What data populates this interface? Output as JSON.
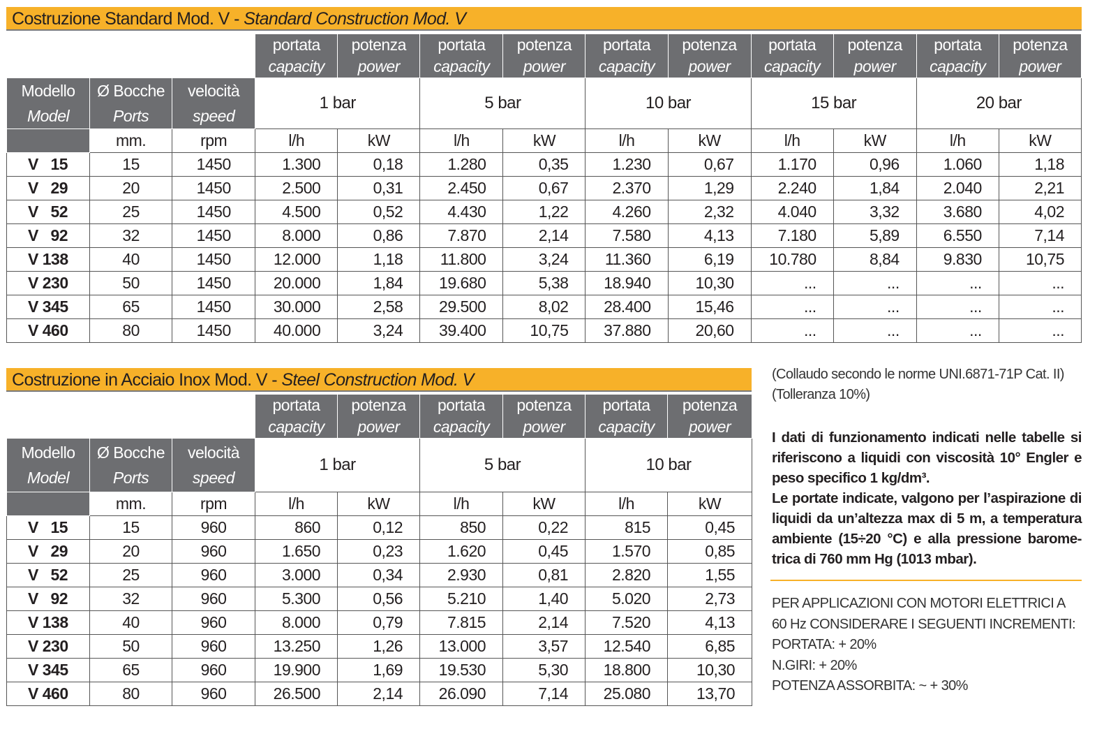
{
  "table1": {
    "title_it": "Costruzione Standard Mod. V - ",
    "title_en": "Standard Construction Mod. V",
    "col_pairs": [
      {
        "cap_it": "portata",
        "cap_en": "capacity",
        "pow_it": "potenza",
        "pow_en": "power",
        "bar": "1 bar",
        "u1": "l/h",
        "u2": "kW"
      },
      {
        "cap_it": "portata",
        "cap_en": "capacity",
        "pow_it": "potenza",
        "pow_en": "power",
        "bar": "5 bar",
        "u1": "l/h",
        "u2": "kW"
      },
      {
        "cap_it": "portata",
        "cap_en": "capacity",
        "pow_it": "potenza",
        "pow_en": "power",
        "bar": "10 bar",
        "u1": "l/h",
        "u2": "kW"
      },
      {
        "cap_it": "portata",
        "cap_en": "capacity",
        "pow_it": "potenza",
        "pow_en": "power",
        "bar": "15 bar",
        "u1": "l/h",
        "u2": "kW"
      },
      {
        "cap_it": "portata",
        "cap_en": "capacity",
        "pow_it": "potenza",
        "pow_en": "power",
        "bar": "20 bar",
        "u1": "l/h",
        "u2": "kW"
      }
    ],
    "hdr": {
      "model_it": "Modello",
      "model_en": "Model",
      "ports_it": "Ø Bocche",
      "ports_en": "Ports",
      "speed_it": "velocità",
      "speed_en": "speed",
      "ports_unit": "mm.",
      "speed_unit": "rpm"
    },
    "rows": [
      [
        "V   15",
        "15",
        "1450",
        "1.300",
        "0,18",
        "1.280",
        "0,35",
        "1.230",
        "0,67",
        "1.170",
        "0,96",
        "1.060",
        "1,18"
      ],
      [
        "V   29",
        "20",
        "1450",
        "2.500",
        "0,31",
        "2.450",
        "0,67",
        "2.370",
        "1,29",
        "2.240",
        "1,84",
        "2.040",
        "2,21"
      ],
      [
        "V   52",
        "25",
        "1450",
        "4.500",
        "0,52",
        "4.430",
        "1,22",
        "4.260",
        "2,32",
        "4.040",
        "3,32",
        "3.680",
        "4,02"
      ],
      [
        "V   92",
        "32",
        "1450",
        "8.000",
        "0,86",
        "7.870",
        "2,14",
        "7.580",
        "4,13",
        "7.180",
        "5,89",
        "6.550",
        "7,14"
      ],
      [
        "V 138",
        "40",
        "1450",
        "12.000",
        "1,18",
        "11.800",
        "3,24",
        "11.360",
        "6,19",
        "10.780",
        "8,84",
        "9.830",
        "10,75"
      ],
      [
        "V 230",
        "50",
        "1450",
        "20.000",
        "1,84",
        "19.680",
        "5,38",
        "18.940",
        "10,30",
        "...",
        "...",
        "...",
        "..."
      ],
      [
        "V 345",
        "65",
        "1450",
        "30.000",
        "2,58",
        "29.500",
        "8,02",
        "28.400",
        "15,46",
        "...",
        "...",
        "...",
        "..."
      ],
      [
        "V 460",
        "80",
        "1450",
        "40.000",
        "3,24",
        "39.400",
        "10,75",
        "37.880",
        "20,60",
        "...",
        "...",
        "...",
        "..."
      ]
    ]
  },
  "table2": {
    "title_it": "Costruzione in Acciaio Inox Mod. V - ",
    "title_en": "Steel Construction Mod. V",
    "col_pairs": [
      {
        "cap_it": "portata",
        "cap_en": "capacity",
        "pow_it": "potenza",
        "pow_en": "power",
        "bar": "1 bar",
        "u1": "l/h",
        "u2": "kW"
      },
      {
        "cap_it": "portata",
        "cap_en": "capacity",
        "pow_it": "potenza",
        "pow_en": "power",
        "bar": "5 bar",
        "u1": "l/h",
        "u2": "kW"
      },
      {
        "cap_it": "portata",
        "cap_en": "capacity",
        "pow_it": "potenza",
        "pow_en": "power",
        "bar": "10 bar",
        "u1": "l/h",
        "u2": "kW"
      }
    ],
    "hdr": {
      "model_it": "Modello",
      "model_en": "Model",
      "ports_it": "Ø Bocche",
      "ports_en": "Ports",
      "speed_it": "velocità",
      "speed_en": "speed",
      "ports_unit": "mm.",
      "speed_unit": "rpm"
    },
    "rows": [
      [
        "V   15",
        "15",
        "960",
        "860",
        "0,12",
        "850",
        "0,22",
        "815",
        "0,45"
      ],
      [
        "V   29",
        "20",
        "960",
        "1.650",
        "0,23",
        "1.620",
        "0,45",
        "1.570",
        "0,85"
      ],
      [
        "V   52",
        "25",
        "960",
        "3.000",
        "0,34",
        "2.930",
        "0,81",
        "2.820",
        "1,55"
      ],
      [
        "V   92",
        "32",
        "960",
        "5.300",
        "0,56",
        "5.210",
        "1,40",
        "5.020",
        "2,73"
      ],
      [
        "V 138",
        "40",
        "960",
        "8.000",
        "0,79",
        "7.815",
        "2,14",
        "7.520",
        "4,13"
      ],
      [
        "V 230",
        "50",
        "960",
        "13.250",
        "1,26",
        "13.000",
        "3,57",
        "12.540",
        "6,85"
      ],
      [
        "V 345",
        "65",
        "960",
        "19.900",
        "1,69",
        "19.530",
        "5,30",
        "18.800",
        "10,30"
      ],
      [
        "V 460",
        "80",
        "960",
        "26.500",
        "2,14",
        "26.090",
        "7,14",
        "25.080",
        "13,70"
      ]
    ]
  },
  "notes": {
    "test_norm": "(Collaudo secondo le norme UNI.6871-71P Cat. II)",
    "tolerance": "(Tolleranza 10%)",
    "description": "I dati di funzionamento indicati nelle tabelle si riferiscono a liquidi con viscosità 10° Engler e peso specifico 1 kg/dm³. Le portate indicate, valgono per l’aspirazione di liquidi da un’altezza max di 5 m, a temperatura ambiente (15÷20 °C) e alla pressione barome-trica di 760 mm Hg (1013 mbar).",
    "description_lines": [
      "I dati di funzionamento indicati nelle tabelle si",
      "riferiscono a liquidi con viscosità 10° Engler e",
      "peso specifico 1 kg/dm³.",
      "Le portate indicate, valgono per l’aspirazione di",
      "liquidi da un’altezza max di 5 m, a temperatura",
      "ambiente (15÷20 °C) e alla pressione barome-",
      "trica di 760 mm Hg (1013 mbar)."
    ],
    "increments": [
      "PER APPLICAZIONI CON MOTORI ELETTRICI A",
      "60 Hz CONSIDERARE I SEGUENTI INCREMENTI:",
      "PORTATA: + 20%",
      "N.GIRI: + 20%",
      "POTENZA ASSORBITA: ~ + 30%"
    ]
  },
  "colors": {
    "accent": "#f7b129",
    "header_bg": "#6d6e71",
    "text": "#231f20"
  }
}
